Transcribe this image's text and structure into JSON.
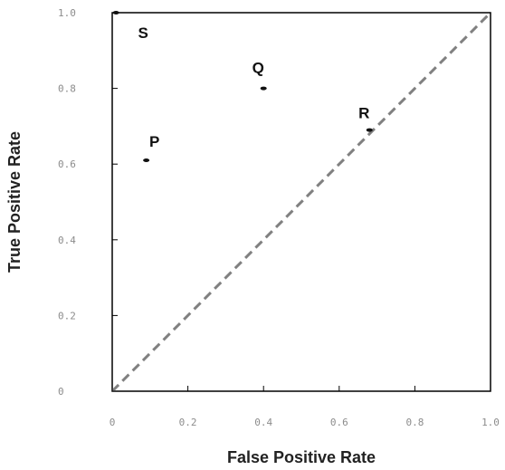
{
  "chart_data": {
    "type": "scatter",
    "title": "",
    "xlabel": "False Positive Rate",
    "ylabel": "True Positive Rate",
    "xlim": [
      0,
      1
    ],
    "ylim": [
      0,
      1
    ],
    "x_ticks": [
      "0",
      "0.2",
      "0.4",
      "0.6",
      "0.8",
      "1.0"
    ],
    "y_ticks": [
      "0",
      "0.2",
      "0.4",
      "0.6",
      "0.8",
      "1.0"
    ],
    "grid": false,
    "points": [
      {
        "label": "P",
        "x": 0.09,
        "y": 0.61
      },
      {
        "label": "Q",
        "x": 0.4,
        "y": 0.8
      },
      {
        "label": "R",
        "x": 0.68,
        "y": 0.69
      },
      {
        "label": "S",
        "x": 0.01,
        "y": 1.0
      }
    ],
    "reference_line": {
      "from": [
        0,
        0
      ],
      "to": [
        1,
        1
      ],
      "style": "dashed",
      "color": "#808080"
    },
    "colors": {
      "points": "#111111",
      "frame": "#000000",
      "tick_labels": "#8c8c8c"
    }
  }
}
